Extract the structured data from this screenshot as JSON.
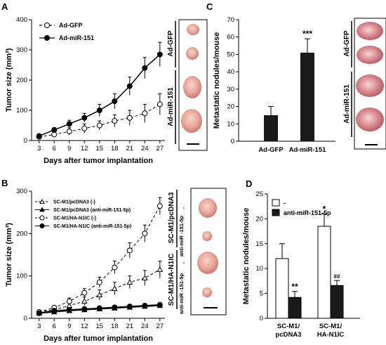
{
  "panel_labels": {
    "a": "A",
    "b": "B",
    "c": "C",
    "d": "D"
  },
  "photo_labels": {
    "a": {
      "top": "Ad-GFP",
      "bottom": "Ad-miR-151"
    },
    "b": {
      "group1": "SC-M1/pcDNA3",
      "group2": "SC-M1/HA-N1IC",
      "minus": "-",
      "anti": "anti-miR -151-5p"
    },
    "c": {
      "top": "Ad-GFP",
      "bottom": "Ad-miR-151"
    }
  },
  "chart_data": [
    {
      "id": "A",
      "type": "line",
      "xlabel": "Days after tumor implantation",
      "ylabel": "Tumor size (mm³)",
      "x": [
        3,
        6,
        9,
        12,
        15,
        18,
        21,
        24,
        27
      ],
      "ylim": [
        0,
        400
      ],
      "yticks": [
        0,
        100,
        200,
        300,
        400
      ],
      "series": [
        {
          "name": "Ad-GFP",
          "style": "dashed-open",
          "values": [
            12,
            20,
            30,
            40,
            50,
            65,
            75,
            90,
            120
          ],
          "errors": [
            3,
            8,
            12,
            15,
            15,
            20,
            25,
            30,
            35
          ]
        },
        {
          "name": "Ad-miR-151",
          "style": "solid-filled",
          "values": [
            15,
            35,
            55,
            75,
            100,
            130,
            180,
            240,
            285
          ],
          "errors": [
            3,
            8,
            12,
            15,
            20,
            25,
            30,
            35,
            40
          ]
        }
      ]
    },
    {
      "id": "B",
      "type": "line",
      "xlabel": "Days after tumor implantation",
      "ylabel": "Tumor size (mm³)",
      "x": [
        3,
        6,
        9,
        12,
        15,
        18,
        21,
        24,
        27
      ],
      "ylim": [
        0,
        300
      ],
      "yticks": [
        0,
        100,
        200,
        300
      ],
      "series": [
        {
          "name": "SC-M1/pcDNA3 (-)",
          "style": "dashed-open-triangle",
          "values": [
            15,
            20,
            30,
            40,
            55,
            70,
            85,
            95,
            115
          ],
          "errors": [
            3,
            5,
            8,
            10,
            12,
            15,
            15,
            18,
            20
          ]
        },
        {
          "name": "SC-M1/pcDNA3 (anti-miR-151-5p)",
          "style": "solid-filled-triangle",
          "values": [
            12,
            15,
            18,
            20,
            22,
            24,
            26,
            28,
            30
          ],
          "errors": [
            2,
            3,
            3,
            3,
            3,
            3,
            3,
            3,
            3
          ]
        },
        {
          "name": "SC-M1/HA-N1IC (-)",
          "style": "dashed-open-circle",
          "values": [
            15,
            25,
            40,
            60,
            85,
            120,
            160,
            200,
            265
          ],
          "errors": [
            3,
            5,
            8,
            10,
            12,
            15,
            18,
            20,
            20
          ]
        },
        {
          "name": "SC-M1/HA-N1IC (anti-miR-151-5p)",
          "style": "solid-filled-circle",
          "values": [
            12,
            18,
            20,
            22,
            24,
            26,
            28,
            30,
            32
          ],
          "errors": [
            2,
            3,
            3,
            3,
            3,
            3,
            3,
            3,
            3
          ]
        }
      ]
    },
    {
      "id": "C",
      "type": "bar",
      "ylabel": "Metastatic nodules/mouse",
      "categories": [
        "Ad-GFP",
        "Ad-miR-151"
      ],
      "values": [
        15,
        51
      ],
      "errors": [
        5,
        8
      ],
      "ylim": [
        0,
        70
      ],
      "yticks": [
        0,
        10,
        20,
        30,
        40,
        50,
        60,
        70
      ],
      "annotations": [
        "",
        "***"
      ]
    },
    {
      "id": "D",
      "type": "bar",
      "ylabel": "Metastatic nodules/mouse",
      "categories": [
        "SC-M1/ pcDNA3",
        "SC-M1/ HA-N1IC"
      ],
      "ylim": [
        0,
        25
      ],
      "yticks": [
        0,
        5,
        10,
        15,
        20,
        25
      ],
      "series": [
        {
          "name": "-",
          "color": "#ffffff",
          "values": [
            12,
            18.5
          ],
          "errors": [
            3,
            2.5
          ],
          "annotations": [
            "",
            "*"
          ]
        },
        {
          "name": "anti-miR-151-5p",
          "color": "#1a1a1a",
          "values": [
            4.2,
            6.6
          ],
          "errors": [
            1.2,
            1
          ],
          "annotations": [
            "**",
            "##"
          ]
        }
      ]
    }
  ]
}
